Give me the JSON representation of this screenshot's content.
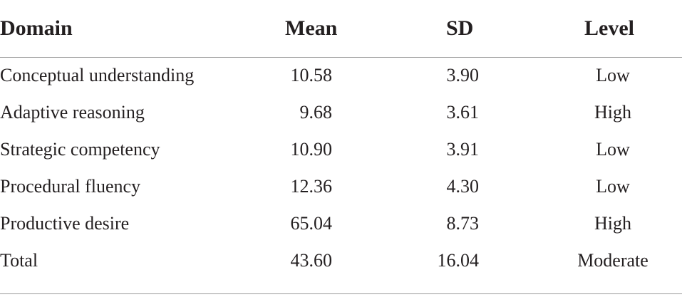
{
  "table": {
    "headers": {
      "domain": "Domain",
      "mean": "Mean",
      "sd": "SD",
      "level": "Level"
    },
    "rows": [
      {
        "domain": "Conceptual understanding",
        "mean": "10.58",
        "sd": "3.90",
        "level": "Low"
      },
      {
        "domain": "Adaptive reasoning",
        "mean": "9.68",
        "sd": "3.61",
        "level": "High"
      },
      {
        "domain": "Strategic competency",
        "mean": "10.90",
        "sd": "3.91",
        "level": "Low"
      },
      {
        "domain": "Procedural fluency",
        "mean": "12.36",
        "sd": "4.30",
        "level": "Low"
      },
      {
        "domain": "Productive desire",
        "mean": "65.04",
        "sd": "8.73",
        "level": "High"
      },
      {
        "domain": "Total",
        "mean": "43.60",
        "sd": "16.04",
        "level": "Moderate"
      }
    ]
  }
}
